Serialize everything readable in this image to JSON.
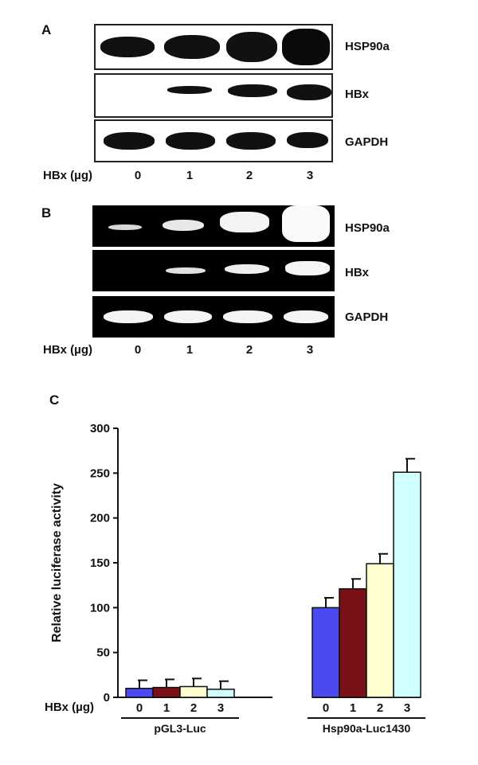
{
  "panel_a": {
    "letter": "A",
    "rows": [
      "HSP90a",
      "HBx",
      "GAPDH"
    ],
    "lane_prefix": "HBx (µg)",
    "lanes": [
      "0",
      "1",
      "2",
      "3"
    ]
  },
  "panel_b": {
    "letter": "B",
    "rows": [
      "HSP90a",
      "HBx",
      "GAPDH"
    ],
    "lane_prefix": "HBx (µg)",
    "lanes": [
      "0",
      "1",
      "2",
      "3"
    ]
  },
  "panel_c": {
    "letter": "C"
  },
  "chart_data": {
    "type": "bar",
    "ylabel": "Relative luciferase activity",
    "ylim": [
      0,
      300
    ],
    "yticks": [
      0,
      50,
      100,
      150,
      200,
      250,
      300
    ],
    "x_prefix": "HBx (µg)",
    "groups": [
      "pGL3-Luc",
      "Hsp90a-Luc1430"
    ],
    "categories": [
      "0",
      "1",
      "2",
      "3"
    ],
    "colors": [
      "#4a4af0",
      "#7a1018",
      "#ffffd0",
      "#d0ffff"
    ],
    "values": [
      [
        10,
        11,
        12,
        9
      ],
      [
        100,
        121,
        149,
        251
      ]
    ],
    "errors": [
      [
        9,
        9,
        9,
        9
      ],
      [
        11,
        11,
        11,
        15
      ]
    ]
  }
}
